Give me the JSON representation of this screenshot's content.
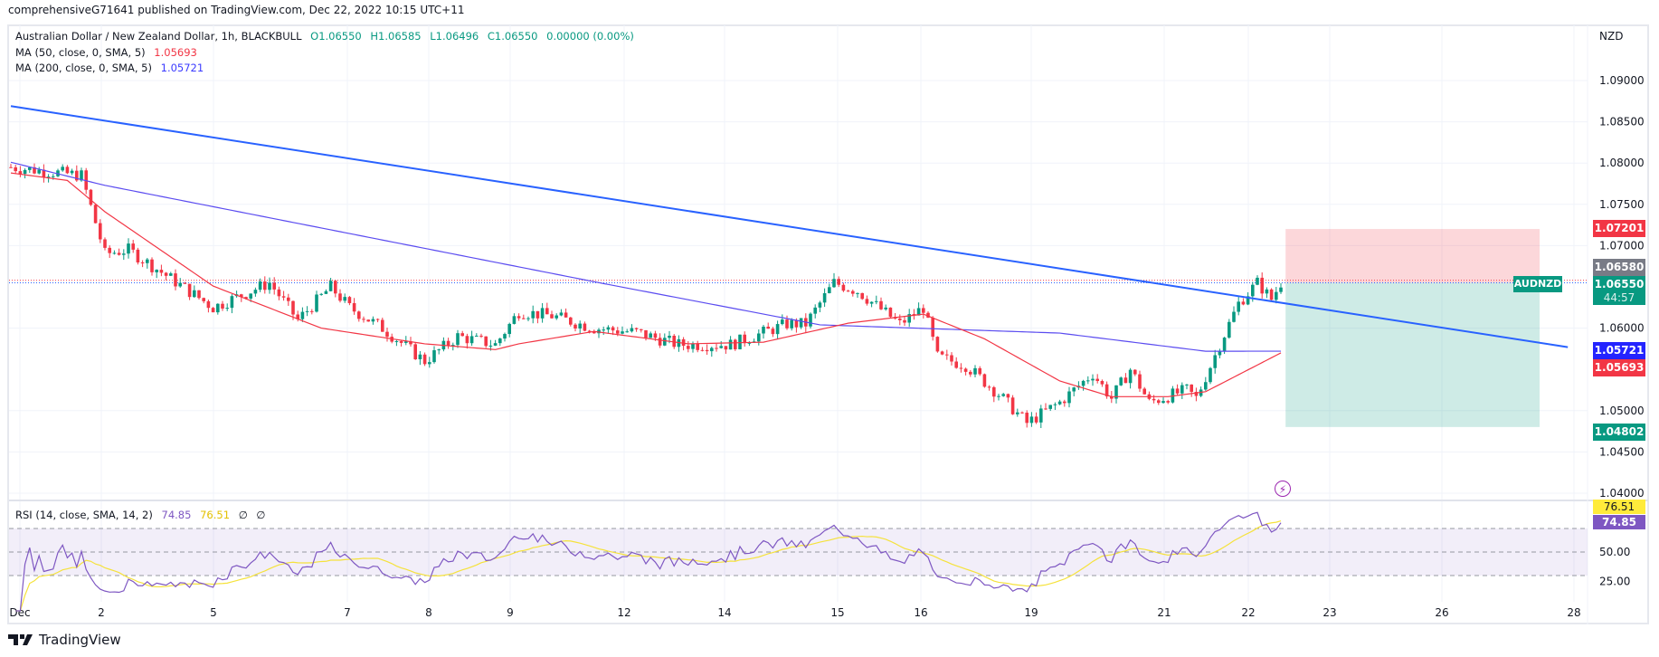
{
  "header": {
    "published": "comprehensiveG71641 published on TradingView.com, Dec 22, 2022 10:15 UTC+11"
  },
  "legend": {
    "symbol_line": "Australian Dollar / New Zealand Dollar, 1h, BLACKBULL",
    "open": "O1.06550",
    "high": "H1.06585",
    "low": "L1.06496",
    "close": "C1.06550",
    "change": "0.00000 (0.00%)",
    "ma50_label": "MA (50, close, 0, SMA, 5)",
    "ma50_value": "1.05693",
    "ma200_label": "MA (200, close, 0, SMA, 5)",
    "ma200_value": "1.05721",
    "rsi_label": "RSI (14, close, SMA, 14, 2)",
    "rsi_value": "74.85",
    "rsi_ma_value": "76.51",
    "rsi_extra1": "∅",
    "rsi_extra2": "∅"
  },
  "price_tags": {
    "currency": "NZD",
    "stop": "1.07201",
    "high_line": "1.06580",
    "last": "1.06550",
    "countdown": "44:57",
    "symbol": "AUDNZD",
    "ma200": "1.05721",
    "ma50": "1.05693",
    "target": "1.04802",
    "rsi_ma": "76.51",
    "rsi": "74.85"
  },
  "footer": {
    "brand": "TradingView"
  },
  "colors": {
    "up": "#089981",
    "down": "#f23645",
    "ma50": "#f23645",
    "ma200": "#5b4cf0",
    "trend": "#2962ff",
    "rsi": "#7e57c2",
    "rsi_ma": "#f5e23b"
  },
  "chart_data": {
    "type": "candlestick",
    "title": "Australian Dollar / New Zealand Dollar, 1h, BLACKBULL",
    "ylabel": "NZD",
    "ylim": [
      1.04,
      1.09
    ],
    "y_ticks": [
      "1.09000",
      "1.08500",
      "1.08000",
      "1.07500",
      "1.07000",
      "1.06000",
      "1.05000",
      "1.04500",
      "1.04000"
    ],
    "x_ticks": [
      "Dec",
      "2",
      "5",
      "7",
      "8",
      "9",
      "12",
      "14",
      "15",
      "16",
      "19",
      "21",
      "22",
      "23",
      "26",
      "28"
    ],
    "approx_close_path": [
      [
        0,
        1.0795
      ],
      [
        15,
        1.0785
      ],
      [
        20,
        1.069
      ],
      [
        25,
        1.0695
      ],
      [
        34,
        1.066
      ],
      [
        43,
        1.0625
      ],
      [
        55,
        1.0655
      ],
      [
        61,
        1.061
      ],
      [
        68,
        1.065
      ],
      [
        72,
        1.0625
      ],
      [
        79,
        1.06
      ],
      [
        88,
        1.056
      ],
      [
        95,
        1.059
      ],
      [
        103,
        1.058
      ],
      [
        108,
        1.062
      ],
      [
        115,
        1.0615
      ],
      [
        124,
        1.06
      ],
      [
        133,
        1.0595
      ],
      [
        142,
        1.058
      ],
      [
        153,
        1.058
      ],
      [
        165,
        1.0605
      ],
      [
        169,
        1.0605
      ],
      [
        175,
        1.0655
      ],
      [
        180,
        1.0645
      ],
      [
        189,
        1.0605
      ],
      [
        194,
        1.0625
      ],
      [
        197,
        1.0565
      ],
      [
        203,
        1.0555
      ],
      [
        210,
        1.052
      ],
      [
        216,
        1.0485
      ],
      [
        223,
        1.051
      ],
      [
        230,
        1.0545
      ],
      [
        234,
        1.0515
      ],
      [
        238,
        1.055
      ],
      [
        242,
        1.051
      ],
      [
        250,
        1.0525
      ],
      [
        252,
        1.0515
      ],
      [
        257,
        1.058
      ],
      [
        261,
        1.063
      ],
      [
        265,
        1.0655
      ],
      [
        268,
        1.0635
      ],
      [
        270,
        1.0655
      ]
    ],
    "ma50_path": [
      [
        0,
        1.0788
      ],
      [
        12,
        1.0779
      ],
      [
        20,
        1.0741
      ],
      [
        43,
        1.0651
      ],
      [
        66,
        1.06
      ],
      [
        88,
        1.0581
      ],
      [
        103,
        1.0574
      ],
      [
        108,
        1.0581
      ],
      [
        124,
        1.0596
      ],
      [
        144,
        1.0581
      ],
      [
        160,
        1.0583
      ],
      [
        178,
        1.0606
      ],
      [
        194,
        1.0617
      ],
      [
        207,
        1.0587
      ],
      [
        223,
        1.0536
      ],
      [
        234,
        1.0517
      ],
      [
        246,
        1.0517
      ],
      [
        254,
        1.0523
      ],
      [
        270,
        1.057
      ]
    ],
    "ma200_path": [
      [
        0,
        1.0801
      ],
      [
        20,
        1.0773
      ],
      [
        126,
        1.0654
      ],
      [
        172,
        1.0604
      ],
      [
        223,
        1.0594
      ],
      [
        254,
        1.0572
      ],
      [
        270,
        1.05721
      ]
    ],
    "trendline": [
      [
        0,
        1.0869
      ],
      [
        331,
        1.0577
      ]
    ],
    "position": {
      "entry": 1.0655,
      "stop": 1.07201,
      "target": 1.04802,
      "start_bar": 271,
      "end_bar": 325
    },
    "rsi": {
      "levels": [
        70,
        50,
        30
      ],
      "y_ticks": [
        "50.00",
        "25.00"
      ],
      "last": 74.85,
      "ma_last": 76.51
    }
  }
}
